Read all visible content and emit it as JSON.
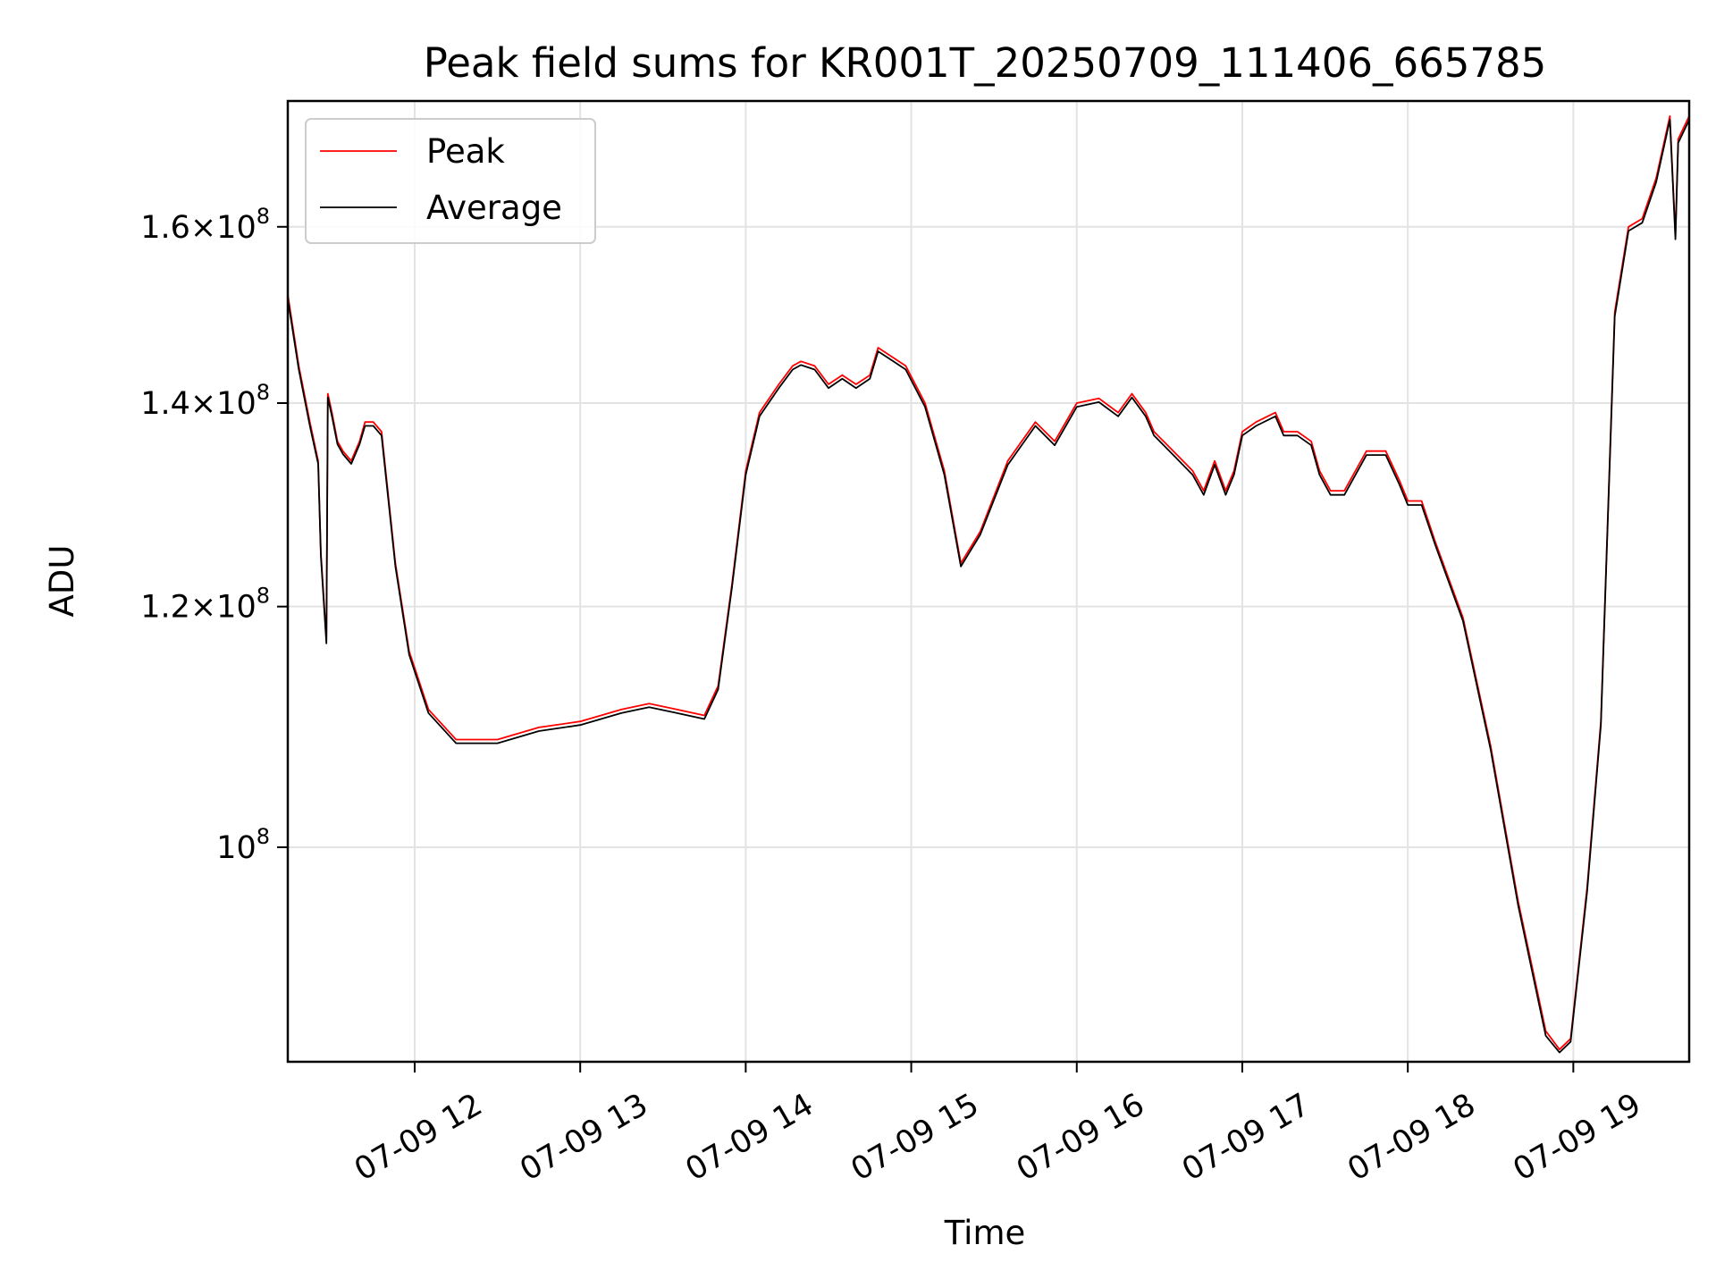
{
  "chart_data": {
    "type": "line",
    "title": "Peak field sums for KR001T_20250709_111406_665785",
    "xlabel": "Time",
    "ylabel": "ADU",
    "yscale": "log",
    "grid": true,
    "legend_position": "top-left",
    "xlim": [
      "2025-07-09 11:14",
      "2025-07-09 19:42"
    ],
    "ylim": [
      85000000,
      176000000
    ],
    "x_ticks": [
      {
        "value": "2025-07-09 12:00",
        "label": "07-09 12"
      },
      {
        "value": "2025-07-09 13:00",
        "label": "07-09 13"
      },
      {
        "value": "2025-07-09 14:00",
        "label": "07-09 14"
      },
      {
        "value": "2025-07-09 15:00",
        "label": "07-09 15"
      },
      {
        "value": "2025-07-09 16:00",
        "label": "07-09 16"
      },
      {
        "value": "2025-07-09 17:00",
        "label": "07-09 17"
      },
      {
        "value": "2025-07-09 18:00",
        "label": "07-09 18"
      },
      {
        "value": "2025-07-09 19:00",
        "label": "07-09 19"
      }
    ],
    "y_ticks": [
      {
        "value": 100000000,
        "mantissa": "",
        "exponent": "8",
        "label": "10^8"
      },
      {
        "value": 120000000,
        "mantissa": "1.2",
        "exponent": "8",
        "label": "1.2×10^8"
      },
      {
        "value": 140000000,
        "mantissa": "1.4",
        "exponent": "8",
        "label": "1.4×10^8"
      },
      {
        "value": 160000000,
        "mantissa": "1.6",
        "exponent": "8",
        "label": "1.6×10^8"
      }
    ],
    "series": [
      {
        "name": "Peak",
        "color": "#ff0000",
        "x": [
          "2025-07-09 11:14",
          "2025-07-09 11:18",
          "2025-07-09 11:22",
          "2025-07-09 11:25",
          "2025-07-09 11:26",
          "2025-07-09 11:28",
          "2025-07-09 11:28:30",
          "2025-07-09 11:30",
          "2025-07-09 11:32",
          "2025-07-09 11:34",
          "2025-07-09 11:37",
          "2025-07-09 11:40",
          "2025-07-09 11:42",
          "2025-07-09 11:45",
          "2025-07-09 11:48",
          "2025-07-09 11:53",
          "2025-07-09 11:58",
          "2025-07-09 12:05",
          "2025-07-09 12:15",
          "2025-07-09 12:30",
          "2025-07-09 12:45",
          "2025-07-09 13:00",
          "2025-07-09 13:15",
          "2025-07-09 13:25",
          "2025-07-09 13:35",
          "2025-07-09 13:45",
          "2025-07-09 13:50",
          "2025-07-09 13:55",
          "2025-07-09 14:00",
          "2025-07-09 14:05",
          "2025-07-09 14:12",
          "2025-07-09 14:17",
          "2025-07-09 14:20",
          "2025-07-09 14:25",
          "2025-07-09 14:30",
          "2025-07-09 14:35",
          "2025-07-09 14:40",
          "2025-07-09 14:45",
          "2025-07-09 14:48",
          "2025-07-09 14:53",
          "2025-07-09 14:58",
          "2025-07-09 15:05",
          "2025-07-09 15:12",
          "2025-07-09 15:18",
          "2025-07-09 15:25",
          "2025-07-09 15:35",
          "2025-07-09 15:45",
          "2025-07-09 15:52",
          "2025-07-09 16:00",
          "2025-07-09 16:08",
          "2025-07-09 16:15",
          "2025-07-09 16:20",
          "2025-07-09 16:25",
          "2025-07-09 16:28",
          "2025-07-09 16:35",
          "2025-07-09 16:42",
          "2025-07-09 16:46",
          "2025-07-09 16:50",
          "2025-07-09 16:54",
          "2025-07-09 16:57",
          "2025-07-09 17:00",
          "2025-07-09 17:05",
          "2025-07-09 17:12",
          "2025-07-09 17:15",
          "2025-07-09 17:20",
          "2025-07-09 17:25",
          "2025-07-09 17:28",
          "2025-07-09 17:32",
          "2025-07-09 17:37",
          "2025-07-09 17:45",
          "2025-07-09 17:52",
          "2025-07-09 17:57",
          "2025-07-09 18:00",
          "2025-07-09 18:05",
          "2025-07-09 18:10",
          "2025-07-09 18:20",
          "2025-07-09 18:30",
          "2025-07-09 18:40",
          "2025-07-09 18:50",
          "2025-07-09 18:55",
          "2025-07-09 18:59",
          "2025-07-09 19:05",
          "2025-07-09 19:10",
          "2025-07-09 19:15",
          "2025-07-09 19:20",
          "2025-07-09 19:25",
          "2025-07-09 19:30",
          "2025-07-09 19:35",
          "2025-07-09 19:37",
          "2025-07-09 19:38",
          "2025-07-09 19:42"
        ],
        "values": [
          152000000,
          144000000,
          138000000,
          134000000,
          125000000,
          117000000,
          141000000,
          139000000,
          136000000,
          135000000,
          134000000,
          136000000,
          138000000,
          138000000,
          137000000,
          124000000,
          116000000,
          111000000,
          108500000,
          108500000,
          109500000,
          110000000,
          111000000,
          111500000,
          111000000,
          110500000,
          113000000,
          122000000,
          133000000,
          139000000,
          142000000,
          144000000,
          144500000,
          144000000,
          142000000,
          143000000,
          142000000,
          143000000,
          146000000,
          145000000,
          144000000,
          140000000,
          133000000,
          124000000,
          127000000,
          134000000,
          138000000,
          136000000,
          140000000,
          140500000,
          139000000,
          141000000,
          139000000,
          137000000,
          135000000,
          133000000,
          131000000,
          134000000,
          131000000,
          133000000,
          137000000,
          138000000,
          139000000,
          137000000,
          137000000,
          136000000,
          133000000,
          131000000,
          131000000,
          135000000,
          135000000,
          132000000,
          130000000,
          130000000,
          126000000,
          119000000,
          108000000,
          96000000,
          87000000,
          85800000,
          86500000,
          97000000,
          110000000,
          150000000,
          160000000,
          161000000,
          166000000,
          174000000,
          159000000,
          171000000,
          174000000
        ]
      },
      {
        "name": "Average",
        "color": "#000000",
        "x": [
          "2025-07-09 11:14",
          "2025-07-09 11:18",
          "2025-07-09 11:22",
          "2025-07-09 11:25",
          "2025-07-09 11:26",
          "2025-07-09 11:28",
          "2025-07-09 11:28:30",
          "2025-07-09 11:30",
          "2025-07-09 11:32",
          "2025-07-09 11:34",
          "2025-07-09 11:37",
          "2025-07-09 11:40",
          "2025-07-09 11:42",
          "2025-07-09 11:45",
          "2025-07-09 11:48",
          "2025-07-09 11:53",
          "2025-07-09 11:58",
          "2025-07-09 12:05",
          "2025-07-09 12:15",
          "2025-07-09 12:30",
          "2025-07-09 12:45",
          "2025-07-09 13:00",
          "2025-07-09 13:15",
          "2025-07-09 13:25",
          "2025-07-09 13:35",
          "2025-07-09 13:45",
          "2025-07-09 13:50",
          "2025-07-09 13:55",
          "2025-07-09 14:00",
          "2025-07-09 14:05",
          "2025-07-09 14:12",
          "2025-07-09 14:17",
          "2025-07-09 14:20",
          "2025-07-09 14:25",
          "2025-07-09 14:30",
          "2025-07-09 14:35",
          "2025-07-09 14:40",
          "2025-07-09 14:45",
          "2025-07-09 14:48",
          "2025-07-09 14:53",
          "2025-07-09 14:58",
          "2025-07-09 15:05",
          "2025-07-09 15:12",
          "2025-07-09 15:18",
          "2025-07-09 15:25",
          "2025-07-09 15:35",
          "2025-07-09 15:45",
          "2025-07-09 15:52",
          "2025-07-09 16:00",
          "2025-07-09 16:08",
          "2025-07-09 16:15",
          "2025-07-09 16:20",
          "2025-07-09 16:25",
          "2025-07-09 16:28",
          "2025-07-09 16:35",
          "2025-07-09 16:42",
          "2025-07-09 16:46",
          "2025-07-09 16:50",
          "2025-07-09 16:54",
          "2025-07-09 16:57",
          "2025-07-09 17:00",
          "2025-07-09 17:05",
          "2025-07-09 17:12",
          "2025-07-09 17:15",
          "2025-07-09 17:20",
          "2025-07-09 17:25",
          "2025-07-09 17:28",
          "2025-07-09 17:32",
          "2025-07-09 17:37",
          "2025-07-09 17:45",
          "2025-07-09 17:52",
          "2025-07-09 17:57",
          "2025-07-09 18:00",
          "2025-07-09 18:05",
          "2025-07-09 18:10",
          "2025-07-09 18:20",
          "2025-07-09 18:30",
          "2025-07-09 18:40",
          "2025-07-09 18:50",
          "2025-07-09 18:55",
          "2025-07-09 18:59",
          "2025-07-09 19:05",
          "2025-07-09 19:10",
          "2025-07-09 19:15",
          "2025-07-09 19:20",
          "2025-07-09 19:25",
          "2025-07-09 19:30",
          "2025-07-09 19:35",
          "2025-07-09 19:37",
          "2025-07-09 19:38",
          "2025-07-09 19:42"
        ],
        "values": [
          151500000,
          143600000,
          137600000,
          133700000,
          124700000,
          116700000,
          140600000,
          138600000,
          135700000,
          134700000,
          133700000,
          135700000,
          137600000,
          137600000,
          136600000,
          123700000,
          115700000,
          110700000,
          108200000,
          108200000,
          109200000,
          109700000,
          110700000,
          111200000,
          110700000,
          110200000,
          112700000,
          121700000,
          132600000,
          138600000,
          141600000,
          143600000,
          144100000,
          143600000,
          141600000,
          142600000,
          141600000,
          142600000,
          145600000,
          144600000,
          143600000,
          139600000,
          132600000,
          123700000,
          126700000,
          133600000,
          137600000,
          135600000,
          139600000,
          140100000,
          138600000,
          140600000,
          138600000,
          136600000,
          134600000,
          132600000,
          130600000,
          133600000,
          130600000,
          132600000,
          136600000,
          137600000,
          138600000,
          136600000,
          136600000,
          135600000,
          132600000,
          130600000,
          130600000,
          134600000,
          134600000,
          131600000,
          129600000,
          129600000,
          125700000,
          118700000,
          107700000,
          95700000,
          86700000,
          85600000,
          86300000,
          96700000,
          109700000,
          149500000,
          159500000,
          160500000,
          165500000,
          173500000,
          158500000,
          170500000,
          173500000
        ]
      }
    ]
  }
}
